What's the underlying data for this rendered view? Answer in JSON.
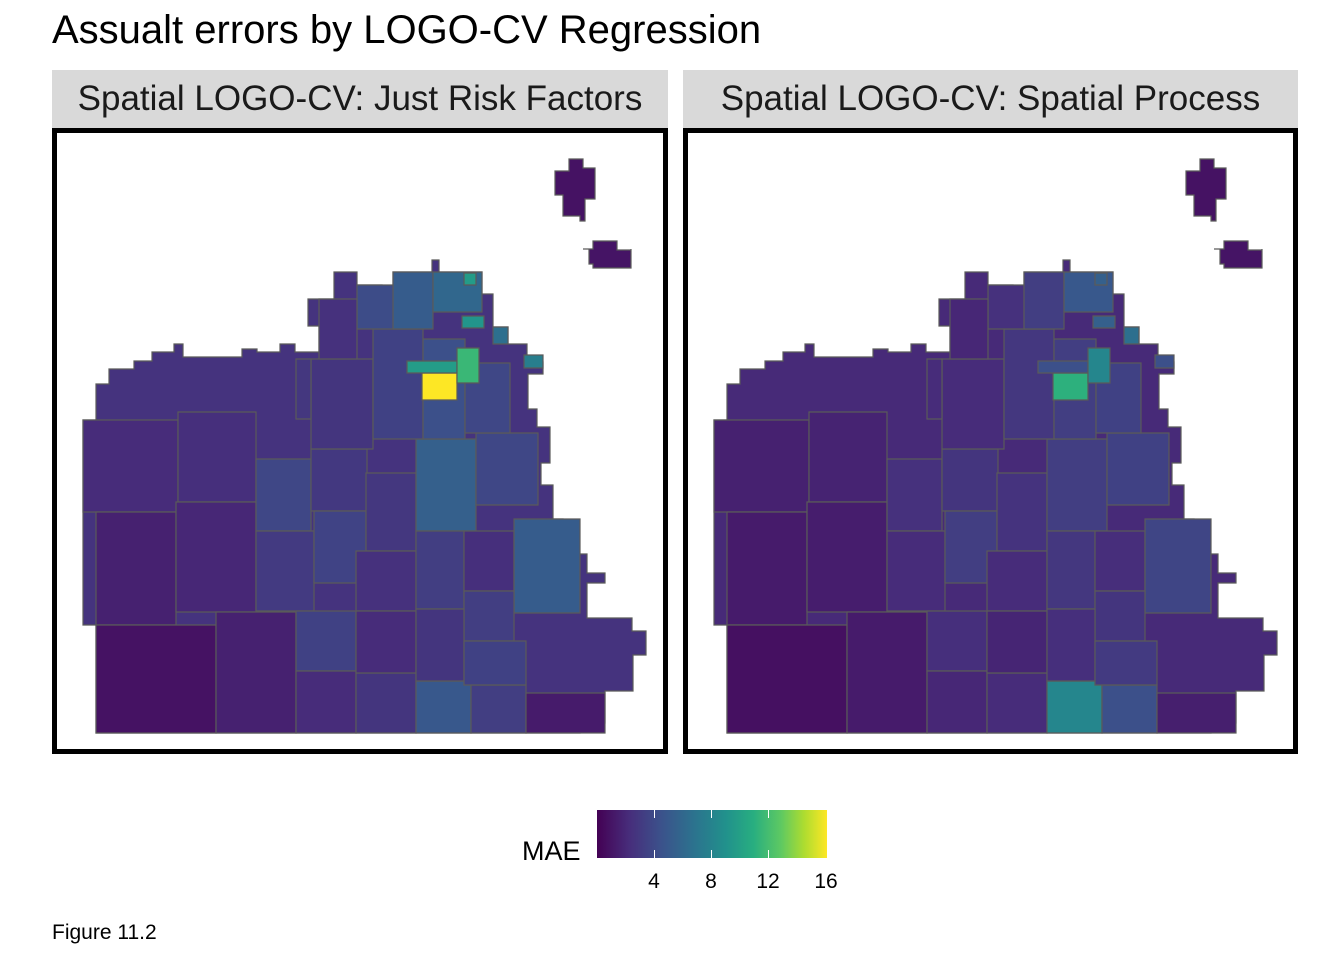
{
  "title": "Assualt errors by LOGO-CV Regression",
  "panels": [
    {
      "label": "Spatial LOGO-CV: Just Risk Factors"
    },
    {
      "label": "Spatial LOGO-CV: Spatial Process"
    }
  ],
  "legend": {
    "title": "MAE",
    "ticks": [
      "4",
      "8",
      "12",
      "16"
    ],
    "domain": [
      0,
      16.5
    ],
    "palette": [
      "#440154",
      "#472d7b",
      "#3b528b",
      "#2c728e",
      "#21918c",
      "#28ae80",
      "#5ec962",
      "#addc30",
      "#fde725"
    ]
  },
  "caption": "Figure 11.2",
  "map_data": {
    "type": "choropleth",
    "variable": "MAE",
    "panel_1_notable_mae": [
      16.5,
      11,
      9,
      8.5,
      7
    ],
    "panel_2_notable_mae": [
      10.5,
      7.5,
      6,
      6
    ]
  }
}
